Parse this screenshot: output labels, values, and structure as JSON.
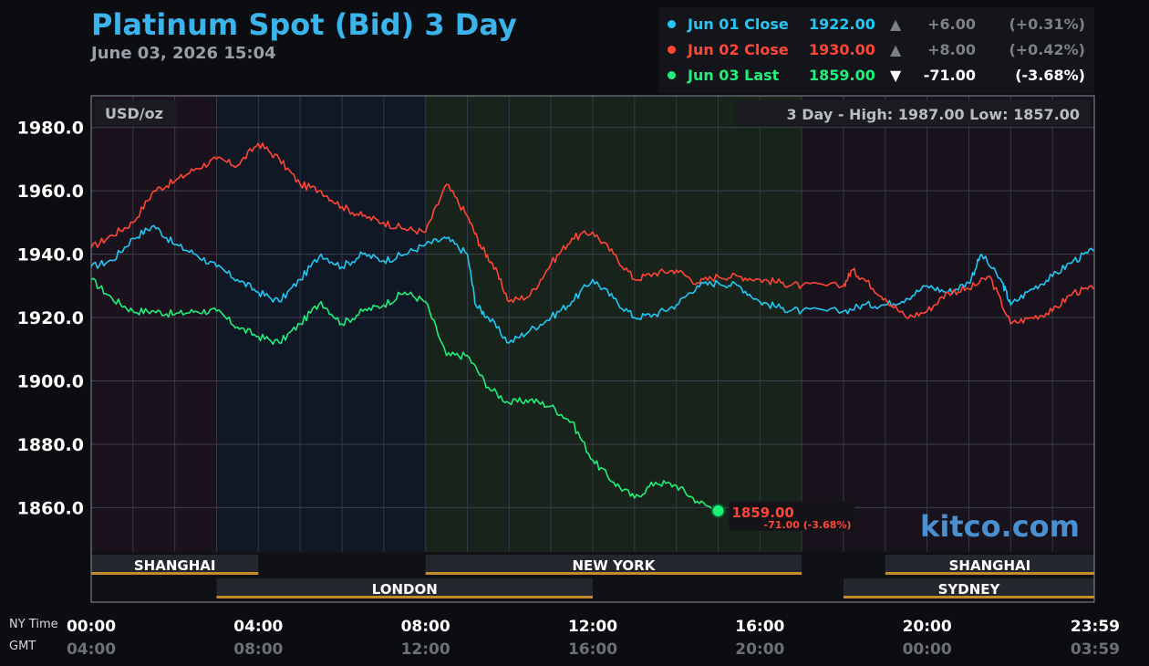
{
  "header": {
    "title": "Platinum Spot (Bid) 3 Day",
    "subtitle": "June 03, 2026 15:04"
  },
  "legend": [
    {
      "label": "Jun 01 Close",
      "value": "1922.00",
      "arrow": "▲",
      "change": "+6.00",
      "pct": "(+0.31%)",
      "color": "#22c7f3",
      "muted": true
    },
    {
      "label": "Jun 02 Close",
      "value": "1930.00",
      "arrow": "▲",
      "change": "+8.00",
      "pct": "(+0.42%)",
      "color": "#ff4636",
      "muted": true
    },
    {
      "label": "Jun 03 Last",
      "value": "1859.00",
      "arrow": "▼",
      "change": "-71.00",
      "pct": "(-3.68%)",
      "color": "#1ff07a",
      "muted": false
    }
  ],
  "plot_info": {
    "unit": "USD/oz",
    "range_label": "3 Day - High: 1987.00  Low: 1857.00"
  },
  "watermark": "kitco.com",
  "last_marker": {
    "value": "1859.00",
    "change_label": "-71.00 (-3.68%)"
  },
  "side_labels": {
    "ny": "NY Time",
    "gmt": "GMT"
  },
  "markets": [
    {
      "name": "SHANGHAI",
      "start": 0,
      "end": 4,
      "row": 1
    },
    {
      "name": "NEW YORK",
      "start": 8,
      "end": 17,
      "row": 1
    },
    {
      "name": "SHANGHAI",
      "start": 19,
      "end": 24,
      "row": 1
    },
    {
      "name": "LONDON",
      "start": 3,
      "end": 12,
      "row": 2
    },
    {
      "name": "SYDNEY",
      "start": 18,
      "end": 24,
      "row": 2
    }
  ],
  "chart_data": {
    "type": "line",
    "title": "Platinum Spot (Bid) 3 Day",
    "ylabel": "USD/oz",
    "ylim": [
      1846,
      1990
    ],
    "xlim": [
      0,
      24
    ],
    "y_ticks": [
      "1860.0",
      "1880.0",
      "1900.0",
      "1920.0",
      "1940.0",
      "1960.0",
      "1980.0"
    ],
    "x_ticks": [
      {
        "ny": "00:00",
        "gmt": "04:00"
      },
      {
        "ny": "04:00",
        "gmt": "08:00"
      },
      {
        "ny": "08:00",
        "gmt": "12:00"
      },
      {
        "ny": "12:00",
        "gmt": "16:00"
      },
      {
        "ny": "16:00",
        "gmt": "20:00"
      },
      {
        "ny": "20:00",
        "gmt": "00:00"
      },
      {
        "ny": "23:59",
        "gmt": "03:59"
      }
    ],
    "x_unit": "hours (NY time)",
    "grid": true,
    "series": [
      {
        "name": "Jun 01",
        "color": "#22c7f3",
        "x": [
          0,
          0.5,
          1,
          1.5,
          2,
          2.5,
          3,
          3.5,
          4,
          4.5,
          5,
          5.5,
          6,
          6.5,
          7,
          7.5,
          8,
          8.5,
          9,
          9.2,
          9.5,
          10,
          10.5,
          11,
          11.5,
          12,
          12.5,
          13,
          13.5,
          14,
          14.5,
          15,
          15.5,
          16,
          16.5,
          17,
          18,
          18.5,
          19,
          19.5,
          20,
          20.5,
          21,
          21.3,
          21.8,
          22,
          22.5,
          23,
          23.5,
          23.98
        ],
        "y": [
          1936,
          1938,
          1945,
          1949,
          1943,
          1940,
          1936,
          1932,
          1928,
          1925,
          1932,
          1940,
          1936,
          1940,
          1938,
          1940,
          1943,
          1945,
          1940,
          1924,
          1920,
          1912,
          1916,
          1920,
          1925,
          1932,
          1926,
          1920,
          1921,
          1924,
          1930,
          1931,
          1930,
          1925,
          1923,
          1922,
          1922,
          1924,
          1924,
          1926,
          1930,
          1928,
          1931,
          1940,
          1931,
          1924,
          1929,
          1933,
          1938,
          1941
        ]
      },
      {
        "name": "Jun 02",
        "color": "#ff4636",
        "x": [
          0,
          0.5,
          1,
          1.5,
          2,
          2.5,
          3,
          3.5,
          4,
          4.5,
          5,
          5.5,
          6,
          6.5,
          7,
          7.5,
          8,
          8.5,
          9,
          9.3,
          9.6,
          10,
          10.5,
          11,
          11.5,
          12,
          12.5,
          13,
          13.5,
          14,
          14.5,
          15,
          15.5,
          16,
          16.5,
          17,
          18,
          18.2,
          18.5,
          19,
          19.5,
          20,
          20.5,
          21,
          21.5,
          22,
          22.5,
          23,
          23.5,
          23.98
        ],
        "y": [
          1942,
          1946,
          1950,
          1960,
          1963,
          1967,
          1970,
          1968,
          1975,
          1970,
          1962,
          1960,
          1955,
          1952,
          1950,
          1948,
          1947,
          1962,
          1952,
          1943,
          1937,
          1925,
          1927,
          1937,
          1945,
          1947,
          1940,
          1932,
          1934,
          1935,
          1931,
          1933,
          1933,
          1932,
          1931,
          1930,
          1930,
          1935,
          1932,
          1926,
          1920,
          1922,
          1928,
          1929,
          1933,
          1918,
          1920,
          1922,
          1928,
          1929
        ]
      },
      {
        "name": "Jun 03",
        "color": "#1ff07a",
        "x": [
          0,
          0.5,
          1,
          1.5,
          2,
          2.5,
          3,
          3.5,
          4,
          4.5,
          5,
          5.5,
          6,
          6.5,
          7,
          7.5,
          8,
          8.5,
          9,
          9.5,
          10,
          10.5,
          11,
          11.5,
          12,
          12.5,
          13,
          13.5,
          14,
          14.5,
          15
        ],
        "y": [
          1932,
          1926,
          1922,
          1922,
          1921,
          1922,
          1922,
          1917,
          1914,
          1912,
          1918,
          1925,
          1918,
          1922,
          1924,
          1928,
          1925,
          1908,
          1908,
          1898,
          1893,
          1894,
          1892,
          1887,
          1875,
          1868,
          1863,
          1868,
          1867,
          1862,
          1859
        ]
      }
    ]
  }
}
